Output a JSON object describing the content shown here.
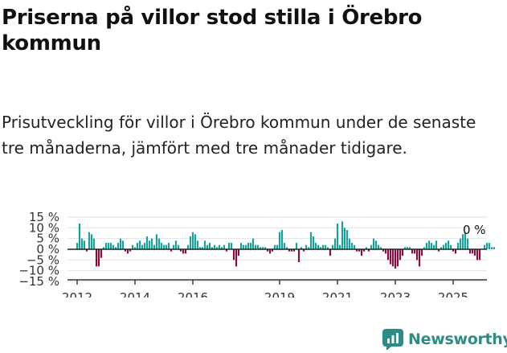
{
  "header": {
    "title": "Priserna på villor stod stilla i Örebro kommun",
    "subtitle": "Prisutveckling för villor i Örebro kommun under de senaste tre månaderna, jämfört med tre månader tidigare."
  },
  "brand": {
    "name": "Newsworthy",
    "icon": "bar-chart-logo-icon"
  },
  "chart_data": {
    "type": "bar",
    "title": "",
    "xlabel": "",
    "ylabel": "",
    "ylim": [
      -15,
      15
    ],
    "xlim": [
      "2011-09",
      "2026-03"
    ],
    "y_ticks": [
      15,
      10,
      5,
      0,
      -5,
      -10,
      -15
    ],
    "y_tick_labels": [
      "15 %",
      "10 %",
      "5 %",
      "0 %",
      "−5 %",
      "−10 %",
      "−15 %"
    ],
    "x_ticks": [
      "2012-01",
      "2014-01",
      "2016-01",
      "2019-01",
      "2021-01",
      "2023-01",
      "2025-01"
    ],
    "x_tick_labels": [
      "2012",
      "2014",
      "2016",
      "2019",
      "2021",
      "2023",
      "2025"
    ],
    "grid": true,
    "colors": {
      "positive": "#13a39a",
      "negative": "#8c0a3e",
      "axis": "#333333",
      "grid": "#e2e2e2"
    },
    "annotation": {
      "x": "2025-07",
      "text": "0 %"
    },
    "series": [
      {
        "start": "2012-01",
        "values": [
          3,
          12,
          5,
          4,
          -1,
          8,
          7,
          5,
          -8,
          -8,
          -4,
          1,
          3,
          3,
          3,
          2,
          1,
          3,
          5,
          4,
          -1,
          -2,
          -1,
          2,
          1,
          3,
          4,
          2,
          3,
          6,
          4,
          5,
          2,
          7,
          5,
          3,
          2,
          2,
          3,
          -1,
          2,
          4,
          2,
          -1,
          -2,
          -2,
          2,
          6,
          8,
          7,
          4,
          1,
          1,
          4,
          2,
          3,
          1,
          2,
          1,
          2,
          1,
          2,
          -1,
          3,
          3,
          -5,
          -8,
          -3,
          3,
          2,
          2,
          3,
          3,
          5,
          2,
          2,
          1,
          1,
          1,
          -1,
          -2,
          -1,
          2,
          2,
          8,
          9,
          3,
          1,
          -1,
          -1,
          -1,
          3,
          -6,
          1,
          -1,
          2,
          1,
          8,
          6,
          3,
          2,
          1,
          2,
          2,
          1,
          -3,
          2,
          5,
          12,
          2,
          13,
          10,
          9,
          5,
          3,
          2,
          -1,
          -1,
          -3,
          -1,
          1,
          -1,
          2,
          5,
          4,
          2,
          1,
          -1,
          -2,
          -5,
          -7,
          -8,
          -9,
          -8,
          -5,
          -3,
          1,
          1,
          1,
          -2,
          -2,
          -5,
          -8,
          -3,
          1,
          3,
          4,
          3,
          2,
          4,
          -1,
          1,
          2,
          3,
          4,
          2,
          -1,
          -2,
          3,
          5,
          7,
          8,
          5,
          -2,
          -2,
          -3,
          -5,
          -5,
          0,
          2,
          3,
          3,
          1,
          1,
          0
        ]
      }
    ]
  }
}
